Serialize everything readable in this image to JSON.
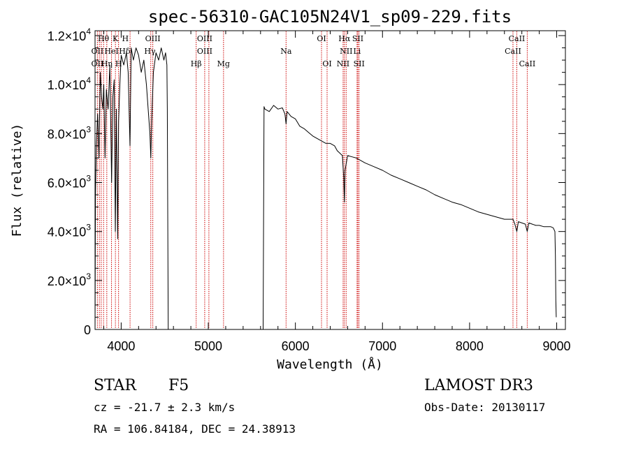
{
  "chart_data": {
    "type": "line",
    "title": "spec-56310-GAC105N24V1_sp09-229.fits",
    "xlabel": "Wavelength (Å)",
    "ylabel": "Flux (relative)",
    "xlim": [
      3700,
      9100
    ],
    "ylim": [
      0,
      12200
    ],
    "x_ticks": [
      4000,
      5000,
      6000,
      7000,
      8000,
      9000
    ],
    "x_tick_labels": [
      "4000",
      "5000",
      "6000",
      "7000",
      "8000",
      "9000"
    ],
    "y_ticks": [
      0,
      2000,
      4000,
      6000,
      8000,
      10000,
      12000
    ],
    "y_tick_labels": [
      {
        "mant": "0",
        "exp": ""
      },
      {
        "mant": "2.0×10",
        "exp": "3"
      },
      {
        "mant": "4.0×10",
        "exp": "3"
      },
      {
        "mant": "6.0×10",
        "exp": "3"
      },
      {
        "mant": "8.0×10",
        "exp": "3"
      },
      {
        "mant": "1.0×10",
        "exp": "4"
      },
      {
        "mant": "1.2×10",
        "exp": "4"
      }
    ],
    "series": [
      {
        "name": "spectrum",
        "color": "#000000",
        "x": [
          3700,
          3705,
          3715,
          3730,
          3745,
          3760,
          3775,
          3790,
          3800,
          3815,
          3830,
          3850,
          3870,
          3890,
          3905,
          3920,
          3933,
          3945,
          3960,
          3970,
          3985,
          4000,
          4030,
          4060,
          4080,
          4101,
          4115,
          4140,
          4170,
          4200,
          4230,
          4260,
          4290,
          4310,
          4330,
          4340,
          4350,
          4370,
          4400,
          4430,
          4460,
          4490,
          4510,
          4525,
          4530,
          4540,
          5630,
          5640,
          5650,
          5700,
          5750,
          5800,
          5850,
          5880,
          5893,
          5905,
          5950,
          6000,
          6050,
          6100,
          6150,
          6200,
          6250,
          6300,
          6350,
          6400,
          6450,
          6480,
          6510,
          6540,
          6555,
          6563,
          6570,
          6600,
          6650,
          6700,
          6800,
          6900,
          7000,
          7100,
          7200,
          7300,
          7400,
          7500,
          7600,
          7700,
          7800,
          7900,
          8000,
          8100,
          8200,
          8300,
          8400,
          8498,
          8520,
          8542,
          8560,
          8600,
          8640,
          8662,
          8680,
          8720,
          8760,
          8800,
          8850,
          8900,
          8930,
          8960,
          8980,
          8985,
          8990,
          8995
        ],
        "y": [
          0,
          5500,
          7500,
          8800,
          7000,
          10500,
          9500,
          9000,
          10000,
          7000,
          9800,
          9000,
          10800,
          6000,
          9500,
          10200,
          4000,
          9000,
          3700,
          8500,
          10000,
          11200,
          10800,
          11300,
          10500,
          7500,
          11500,
          11000,
          11500,
          11200,
          10500,
          11000,
          10000,
          9000,
          8000,
          7000,
          8500,
          10500,
          11300,
          11000,
          11500,
          11000,
          11300,
          10800,
          9000,
          0,
          0,
          9100,
          9000,
          8900,
          9150,
          9000,
          9050,
          8800,
          8400,
          8900,
          8700,
          8600,
          8300,
          8200,
          8050,
          7900,
          7800,
          7700,
          7600,
          7600,
          7500,
          7300,
          7200,
          7100,
          6200,
          5200,
          6500,
          7100,
          7050,
          7000,
          6800,
          6650,
          6500,
          6300,
          6150,
          6000,
          5850,
          5700,
          5500,
          5350,
          5200,
          5100,
          4950,
          4800,
          4700,
          4600,
          4500,
          4500,
          4300,
          4000,
          4400,
          4350,
          4300,
          4000,
          4350,
          4300,
          4250,
          4250,
          4200,
          4200,
          4200,
          4150,
          4000,
          3000,
          1200,
          500
        ]
      }
    ],
    "line_labels": [
      {
        "text": "Hθ",
        "x": 3797,
        "row": 1
      },
      {
        "text": "K",
        "x": 3934,
        "row": 1
      },
      {
        "text": "H",
        "x": 4047,
        "row": 1
      },
      {
        "text": "OIII",
        "x": 4363,
        "row": 1
      },
      {
        "text": "OIII",
        "x": 4959,
        "row": 1
      },
      {
        "text": "OI",
        "x": 6300,
        "row": 1
      },
      {
        "text": "Hα",
        "x": 6563,
        "row": 1
      },
      {
        "text": "SII",
        "x": 6717,
        "row": 1
      },
      {
        "text": "CaII",
        "x": 8542,
        "row": 1
      },
      {
        "text": "OII",
        "x": 3727,
        "row": 2
      },
      {
        "text": "HeI",
        "x": 3889,
        "row": 2
      },
      {
        "text": "Hδ",
        "x": 4040,
        "row": 2
      },
      {
        "text": "Hγ",
        "x": 4330,
        "row": 2
      },
      {
        "text": "OIII",
        "x": 4959,
        "row": 2
      },
      {
        "text": "Na",
        "x": 5893,
        "row": 2
      },
      {
        "text": "NII",
        "x": 6583,
        "row": 2
      },
      {
        "text": "Li",
        "x": 6708,
        "row": 2
      },
      {
        "text": "CaII",
        "x": 8498,
        "row": 2
      },
      {
        "text": "OII",
        "x": 3727,
        "row": 3
      },
      {
        "text": "Hη",
        "x": 3835,
        "row": 3
      },
      {
        "text": "H",
        "x": 3970,
        "row": 3
      },
      {
        "text": "Hβ",
        "x": 4861,
        "row": 3
      },
      {
        "text": "Mg",
        "x": 5175,
        "row": 3
      },
      {
        "text": "OI",
        "x": 6364,
        "row": 3
      },
      {
        "text": "NII",
        "x": 6548,
        "row": 3
      },
      {
        "text": "SII",
        "x": 6731,
        "row": 3
      },
      {
        "text": "CaII",
        "x": 8662,
        "row": 3
      }
    ],
    "line_markers": [
      3727,
      3750,
      3771,
      3798,
      3835,
      3889,
      3934,
      3970,
      4102,
      4340,
      4363,
      4861,
      4959,
      5007,
      5175,
      5893,
      6300,
      6364,
      6548,
      6563,
      6583,
      6708,
      6717,
      6731,
      8498,
      8542,
      8662
    ],
    "marker_color": "#cc0000"
  },
  "info": {
    "object_type": "STAR",
    "subclass": "F5",
    "survey": "LAMOST DR3",
    "cz": "cz = -21.7 ± 2.3 km/s",
    "obs_date": "Obs-Date: 20130117",
    "coords": "RA = 106.84184, DEC =  24.38913"
  }
}
